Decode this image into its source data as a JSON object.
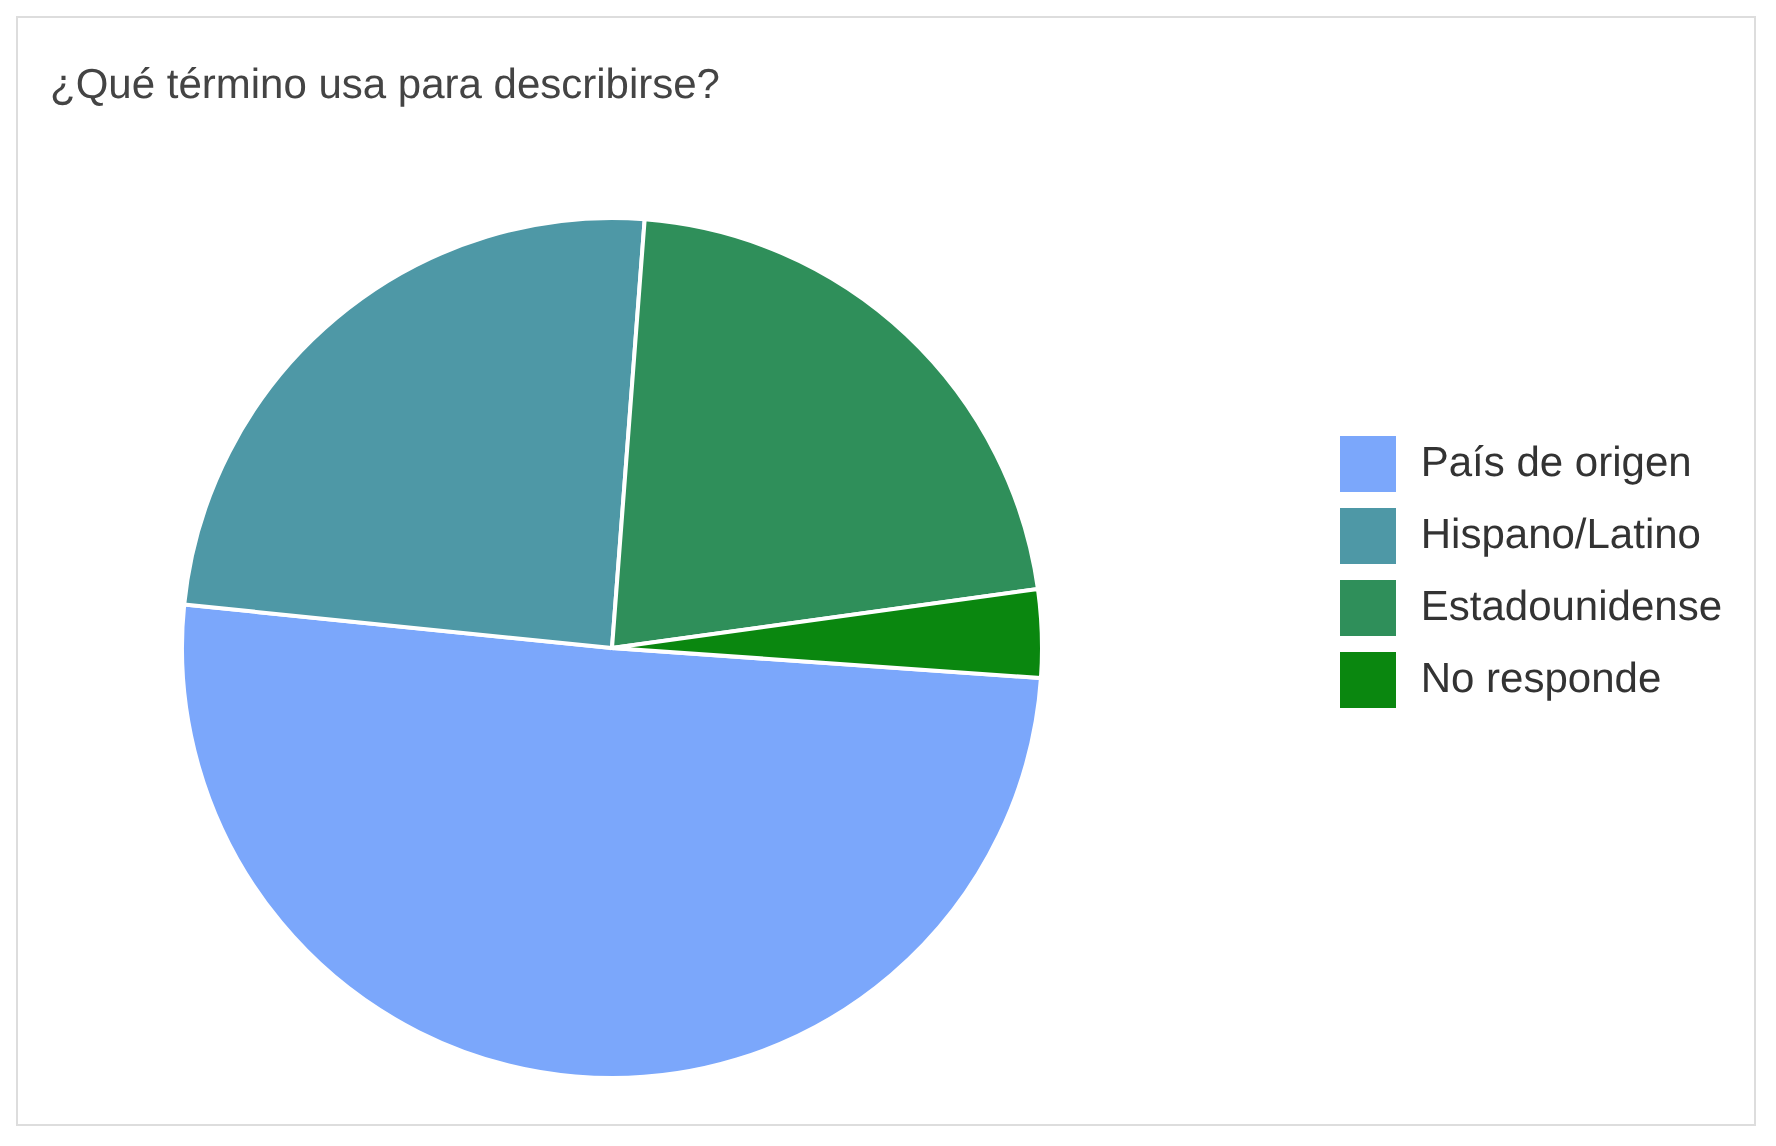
{
  "chart_data": {
    "type": "pie",
    "title": "¿Qué término usa para describirse?",
    "categories": [
      "País de origen",
      "Hispano/Latino",
      "Estadounidense",
      "No responde"
    ],
    "values": [
      50.5,
      24.6,
      21.6,
      3.3
    ],
    "colors": [
      "#7ba7fb",
      "#4e98a6",
      "#2f8f5a",
      "#0a870f"
    ],
    "legend": "right"
  }
}
